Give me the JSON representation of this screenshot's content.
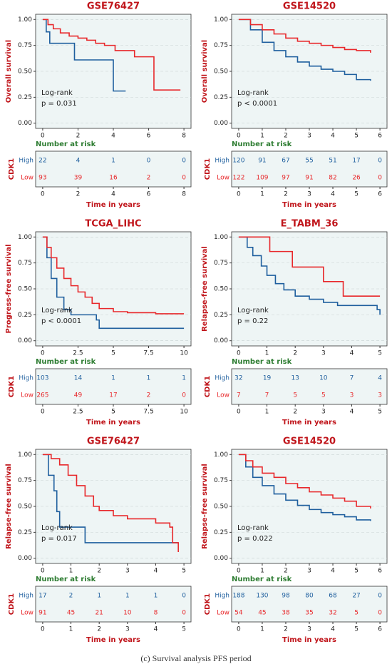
{
  "chart_data": [
    {
      "type": "step",
      "title": "GSE76427",
      "ylabel": "Overall survival",
      "xlabel": "Time in years",
      "risk_title": "Number at risk",
      "risk_label": "CDK1",
      "annotations": [
        "Log-rank",
        "p = 0.031"
      ],
      "grid": true,
      "xlim": [
        -0.4,
        8.4
      ],
      "xticks": [
        0,
        2,
        4,
        6,
        8
      ],
      "ylim": [
        -0.05,
        1.05
      ],
      "yticks": [
        {
          "value": 0,
          "label": "0.00"
        },
        {
          "value": 0.25,
          "label": "0.25"
        },
        {
          "value": 0.5,
          "label": "0.50"
        },
        {
          "value": 0.75,
          "label": "0.75"
        },
        {
          "value": 1,
          "label": "1.00"
        }
      ],
      "series": [
        {
          "name": "High",
          "color": "#1f5f9e",
          "x": [
            0,
            0.2,
            0.4,
            1.8,
            4,
            4.7
          ],
          "values": [
            1,
            0.88,
            0.77,
            0.61,
            0.31,
            0.31
          ],
          "at_risk": [
            22,
            4,
            1,
            0,
            0
          ]
        },
        {
          "name": "Low",
          "color": "#e8282b",
          "x": [
            0,
            0.3,
            0.6,
            1,
            1.5,
            2,
            2.5,
            3,
            3.5,
            4.1,
            5.2,
            6.3,
            7.8
          ],
          "values": [
            1,
            0.95,
            0.91,
            0.87,
            0.84,
            0.82,
            0.8,
            0.77,
            0.75,
            0.7,
            0.64,
            0.32,
            0.32
          ],
          "at_risk": [
            93,
            39,
            16,
            2,
            0
          ]
        }
      ]
    },
    {
      "type": "step",
      "title": "GSE14520",
      "ylabel": "Overall survival",
      "xlabel": "Time in years",
      "risk_title": "Number at risk",
      "risk_label": "CDK1",
      "annotations": [
        "Log-rank",
        "p < 0.0001"
      ],
      "grid": true,
      "xlim": [
        -0.3,
        6.3
      ],
      "xticks": [
        0,
        1,
        2,
        3,
        4,
        5,
        6
      ],
      "ylim": [
        -0.05,
        1.05
      ],
      "yticks": [
        {
          "value": 0,
          "label": "0.00"
        },
        {
          "value": 0.25,
          "label": "0.25"
        },
        {
          "value": 0.5,
          "label": "0.50"
        },
        {
          "value": 0.75,
          "label": "0.75"
        },
        {
          "value": 1,
          "label": "1.00"
        }
      ],
      "series": [
        {
          "name": "High",
          "color": "#1f5f9e",
          "x": [
            0,
            0.5,
            1,
            1.5,
            2,
            2.5,
            3,
            3.5,
            4,
            4.5,
            5,
            5.6
          ],
          "values": [
            1,
            0.9,
            0.78,
            0.7,
            0.64,
            0.59,
            0.55,
            0.52,
            0.5,
            0.47,
            0.42,
            0.41
          ],
          "at_risk": [
            120,
            91,
            67,
            55,
            51,
            17,
            0
          ]
        },
        {
          "name": "Low",
          "color": "#e8282b",
          "x": [
            0,
            0.5,
            1,
            1.5,
            2,
            2.5,
            3,
            3.5,
            4,
            4.5,
            5,
            5.6
          ],
          "values": [
            1,
            0.95,
            0.9,
            0.86,
            0.82,
            0.79,
            0.77,
            0.75,
            0.73,
            0.71,
            0.7,
            0.68
          ],
          "at_risk": [
            122,
            109,
            97,
            91,
            82,
            26,
            0
          ]
        }
      ]
    },
    {
      "type": "step",
      "title": "TCGA_LIHC",
      "ylabel": "Progress-free survival",
      "xlabel": "Time in years",
      "risk_title": "Number at risk",
      "risk_label": "CDK1",
      "annotations": [
        "Log-rank",
        "p < 0.0001"
      ],
      "grid": true,
      "xlim": [
        -0.5,
        10.5
      ],
      "xticks": [
        0,
        2.5,
        5,
        7.5,
        10
      ],
      "ylim": [
        -0.05,
        1.05
      ],
      "yticks": [
        {
          "value": 0,
          "label": "0.00"
        },
        {
          "value": 0.25,
          "label": "0.25"
        },
        {
          "value": 0.5,
          "label": "0.50"
        },
        {
          "value": 0.75,
          "label": "0.75"
        },
        {
          "value": 1,
          "label": "1.00"
        }
      ],
      "series": [
        {
          "name": "High",
          "color": "#1f5f9e",
          "x": [
            0,
            0.3,
            0.6,
            1,
            1.5,
            2,
            3,
            3.8,
            4,
            10
          ],
          "values": [
            1,
            0.8,
            0.6,
            0.42,
            0.3,
            0.25,
            0.25,
            0.2,
            0.12,
            0.12
          ],
          "at_risk": [
            103,
            14,
            1,
            1,
            1
          ]
        },
        {
          "name": "Low",
          "color": "#e8282b",
          "x": [
            0,
            0.3,
            0.6,
            1,
            1.5,
            2,
            2.5,
            3,
            3.5,
            4,
            5,
            6,
            8,
            10
          ],
          "values": [
            1,
            0.9,
            0.8,
            0.7,
            0.6,
            0.53,
            0.47,
            0.42,
            0.36,
            0.31,
            0.28,
            0.27,
            0.26,
            0.26
          ],
          "at_risk": [
            265,
            49,
            17,
            2,
            0
          ]
        }
      ]
    },
    {
      "type": "step",
      "title": "E_TABM_36",
      "ylabel": "Relapse-free survival",
      "xlabel": "Time in years",
      "risk_title": "Number at risk",
      "risk_label": "CDK1",
      "annotations": [
        "Log-rank",
        "p = 0.22"
      ],
      "grid": true,
      "xlim": [
        -0.25,
        5.25
      ],
      "xticks": [
        0,
        1,
        2,
        3,
        4,
        5
      ],
      "ylim": [
        -0.05,
        1.05
      ],
      "yticks": [
        {
          "value": 0,
          "label": "0.00"
        },
        {
          "value": 0.25,
          "label": "0.25"
        },
        {
          "value": 0.5,
          "label": "0.50"
        },
        {
          "value": 0.75,
          "label": "0.75"
        },
        {
          "value": 1,
          "label": "1.00"
        }
      ],
      "series": [
        {
          "name": "High",
          "color": "#1f5f9e",
          "x": [
            0,
            0.3,
            0.5,
            0.8,
            1,
            1.3,
            1.6,
            2,
            2.5,
            3,
            3.5,
            4.9,
            5
          ],
          "values": [
            1,
            0.9,
            0.82,
            0.72,
            0.63,
            0.55,
            0.49,
            0.43,
            0.4,
            0.37,
            0.34,
            0.3,
            0.25
          ],
          "at_risk": [
            32,
            19,
            13,
            10,
            7,
            4
          ]
        },
        {
          "name": "Low",
          "color": "#e8282b",
          "x": [
            0,
            1.1,
            1.9,
            3,
            3.7,
            5
          ],
          "values": [
            1,
            0.86,
            0.71,
            0.57,
            0.43,
            0.43
          ],
          "at_risk": [
            7,
            7,
            5,
            5,
            3,
            3
          ]
        }
      ]
    },
    {
      "type": "step",
      "title": "GSE76427",
      "ylabel": "Relapse-free survival",
      "xlabel": "Time in years",
      "risk_title": "Number at risk",
      "risk_label": "CDK1",
      "annotations": [
        "Log-rank",
        "p = 0.017"
      ],
      "grid": true,
      "xlim": [
        -0.25,
        5.25
      ],
      "xticks": [
        0,
        1,
        2,
        3,
        4,
        5
      ],
      "ylim": [
        -0.05,
        1.05
      ],
      "yticks": [
        {
          "value": 0,
          "label": "0.00"
        },
        {
          "value": 0.25,
          "label": "0.25"
        },
        {
          "value": 0.5,
          "label": "0.50"
        },
        {
          "value": 0.75,
          "label": "0.75"
        },
        {
          "value": 1,
          "label": "1.00"
        }
      ],
      "series": [
        {
          "name": "High",
          "color": "#1f5f9e",
          "x": [
            0,
            0.2,
            0.4,
            0.5,
            0.6,
            1.5,
            4.8
          ],
          "values": [
            1,
            0.8,
            0.65,
            0.45,
            0.3,
            0.15,
            0.15
          ],
          "at_risk": [
            17,
            2,
            1,
            1,
            1,
            0
          ]
        },
        {
          "name": "Low",
          "color": "#e8282b",
          "x": [
            0,
            0.3,
            0.6,
            0.9,
            1.2,
            1.5,
            1.8,
            2,
            2.5,
            3,
            4,
            4.5,
            4.6,
            4.8
          ],
          "values": [
            1,
            0.96,
            0.9,
            0.8,
            0.7,
            0.6,
            0.5,
            0.46,
            0.41,
            0.38,
            0.34,
            0.3,
            0.15,
            0.06
          ],
          "at_risk": [
            91,
            45,
            21,
            10,
            8,
            0
          ]
        }
      ]
    },
    {
      "type": "step",
      "title": "GSE14520",
      "ylabel": "Relapse-free survival",
      "xlabel": "Time in years",
      "risk_title": "Number at risk",
      "risk_label": "CDK1",
      "annotations": [
        "Log-rank",
        "p = 0.022"
      ],
      "grid": true,
      "xlim": [
        -0.3,
        6.3
      ],
      "xticks": [
        0,
        1,
        2,
        3,
        4,
        5,
        6
      ],
      "ylim": [
        -0.05,
        1.05
      ],
      "yticks": [
        {
          "value": 0,
          "label": "0.00"
        },
        {
          "value": 0.25,
          "label": "0.25"
        },
        {
          "value": 0.5,
          "label": "0.50"
        },
        {
          "value": 0.75,
          "label": "0.75"
        },
        {
          "value": 1,
          "label": "1.00"
        }
      ],
      "series": [
        {
          "name": "High",
          "color": "#1f5f9e",
          "x": [
            0,
            0.3,
            0.6,
            1,
            1.5,
            2,
            2.5,
            3,
            3.5,
            4,
            4.5,
            5,
            5.6
          ],
          "values": [
            1,
            0.88,
            0.78,
            0.7,
            0.62,
            0.56,
            0.51,
            0.47,
            0.44,
            0.42,
            0.4,
            0.37,
            0.36
          ],
          "at_risk": [
            188,
            130,
            98,
            80,
            68,
            27,
            0
          ]
        },
        {
          "name": "Low",
          "color": "#e8282b",
          "x": [
            0,
            0.3,
            0.6,
            1,
            1.5,
            2,
            2.5,
            3,
            3.5,
            4,
            4.5,
            5,
            5.6
          ],
          "values": [
            1,
            0.94,
            0.88,
            0.82,
            0.78,
            0.72,
            0.68,
            0.64,
            0.61,
            0.58,
            0.55,
            0.5,
            0.48
          ],
          "at_risk": [
            54,
            45,
            38,
            35,
            32,
            5,
            0
          ]
        }
      ]
    }
  ],
  "caption": "(c) Survival analysis PFS period"
}
